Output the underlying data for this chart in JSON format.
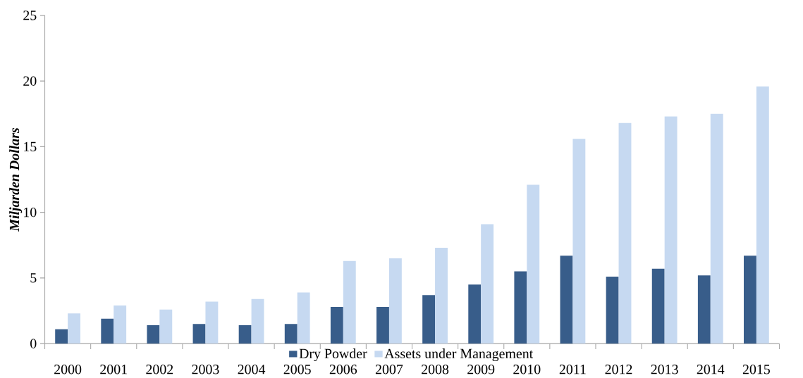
{
  "chart_data": {
    "type": "bar",
    "ylabel": "Miljarden Dollars",
    "categories": [
      "2000",
      "2001",
      "2002",
      "2003",
      "2004",
      "2005",
      "2006",
      "2007",
      "2008",
      "2009",
      "2010",
      "2011",
      "2012",
      "2013",
      "2014",
      "2015"
    ],
    "series": [
      {
        "name": "Dry Powder",
        "color": "#385d8a",
        "values": [
          1.1,
          1.9,
          1.4,
          1.5,
          1.4,
          1.5,
          2.8,
          2.8,
          3.7,
          4.5,
          5.5,
          6.7,
          5.1,
          5.7,
          5.2,
          6.7
        ]
      },
      {
        "name": "Assets under Management",
        "color": "#c6d9f1",
        "values": [
          2.3,
          2.9,
          2.6,
          3.2,
          3.4,
          3.9,
          6.3,
          6.5,
          7.3,
          9.1,
          12.1,
          15.6,
          16.8,
          17.3,
          17.5,
          19.6
        ]
      }
    ],
    "ylim": [
      0,
      25
    ],
    "yticks": [
      0,
      5,
      10,
      15,
      20,
      25
    ],
    "grid": false,
    "legend": "bottom"
  }
}
